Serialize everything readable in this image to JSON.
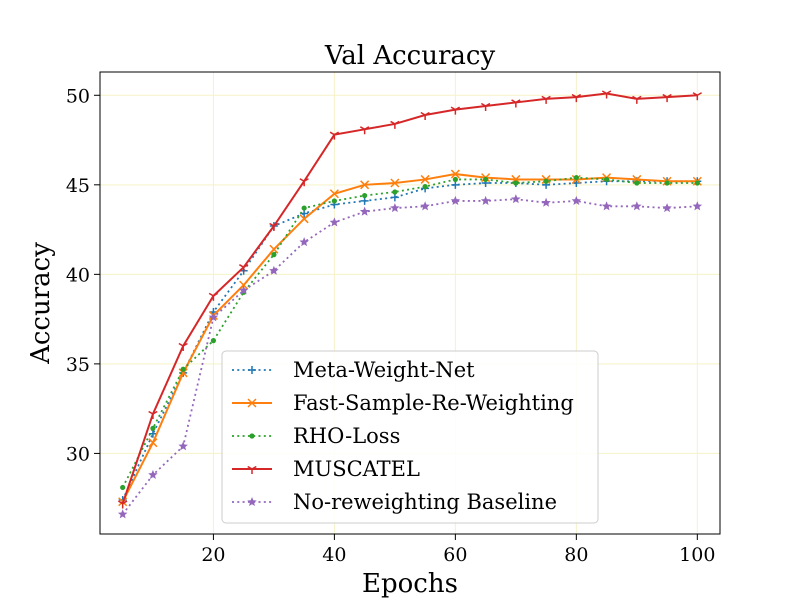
{
  "chart_data": {
    "type": "line",
    "title": "Val Accuracy",
    "xlabel": "Epochs",
    "ylabel": "Accuracy",
    "xlim": [
      1.25,
      103.75
    ],
    "ylim": [
      25.5,
      51.3
    ],
    "xticks": [
      20,
      40,
      60,
      80,
      100
    ],
    "yticks": [
      30,
      35,
      40,
      45,
      50
    ],
    "grid": true,
    "legend_position": "lower-center",
    "x": [
      5,
      10,
      15,
      20,
      25,
      30,
      35,
      40,
      45,
      50,
      55,
      60,
      65,
      70,
      75,
      80,
      85,
      90,
      95,
      100
    ],
    "series": [
      {
        "name": "Meta-Weight-Net",
        "color": "#1f77b4",
        "linestyle": "dotted",
        "marker": "plus",
        "values": [
          27.4,
          31.1,
          34.5,
          37.9,
          40.2,
          42.7,
          43.4,
          43.9,
          44.1,
          44.3,
          44.8,
          45.0,
          45.1,
          45.1,
          45.0,
          45.1,
          45.2,
          45.2,
          45.2,
          45.2
        ]
      },
      {
        "name": "Fast-Sample-Re-Weighting",
        "color": "#ff7f0e",
        "linestyle": "solid",
        "marker": "x",
        "values": [
          27.3,
          30.6,
          34.5,
          37.7,
          39.4,
          41.4,
          43.1,
          44.5,
          45.0,
          45.1,
          45.3,
          45.6,
          45.4,
          45.3,
          45.3,
          45.3,
          45.4,
          45.3,
          45.2,
          45.2
        ]
      },
      {
        "name": "RHO-Loss",
        "color": "#2ca02c",
        "linestyle": "dotted",
        "marker": "point",
        "values": [
          28.1,
          31.4,
          34.7,
          36.3,
          39.0,
          41.1,
          43.7,
          44.1,
          44.4,
          44.6,
          44.9,
          45.3,
          45.3,
          45.1,
          45.2,
          45.4,
          45.3,
          45.1,
          45.1,
          45.1
        ]
      },
      {
        "name": "MUSCATEL",
        "color": "#d62728",
        "linestyle": "solid",
        "marker": "tri",
        "values": [
          27.2,
          32.2,
          36.0,
          38.8,
          40.4,
          42.7,
          45.2,
          47.8,
          48.1,
          48.4,
          48.9,
          49.2,
          49.4,
          49.6,
          49.8,
          49.9,
          50.1,
          49.8,
          49.9,
          50.0
        ]
      },
      {
        "name": "No-reweighting Baseline",
        "color": "#9467bd",
        "linestyle": "dotted",
        "marker": "star",
        "values": [
          26.6,
          28.8,
          30.4,
          37.6,
          39.1,
          40.2,
          41.8,
          42.9,
          43.5,
          43.7,
          43.8,
          44.1,
          44.1,
          44.2,
          44.0,
          44.1,
          43.8,
          43.8,
          43.7,
          43.8
        ]
      }
    ]
  }
}
